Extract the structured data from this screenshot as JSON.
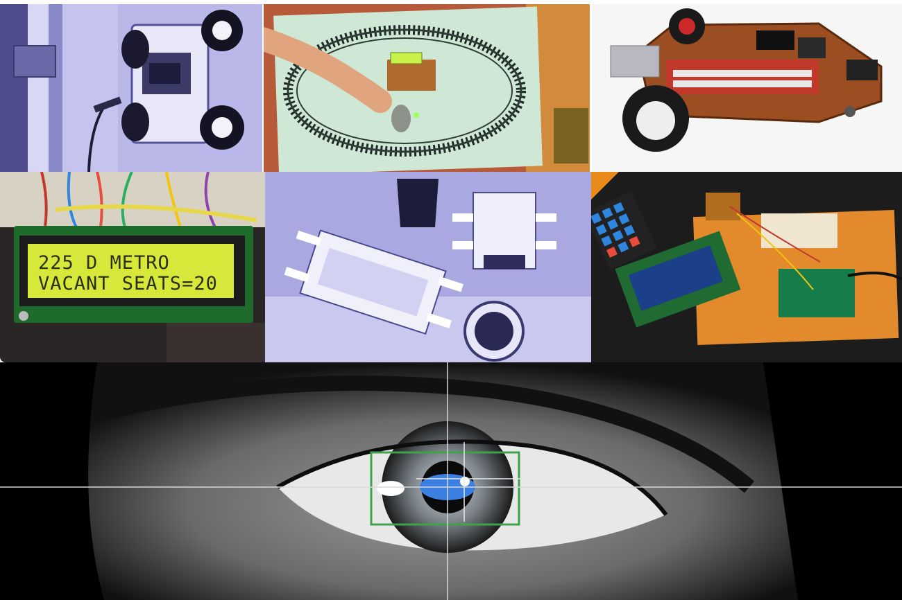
{
  "lcd": {
    "line1": "225 D  METRO",
    "line2": "VACANT SEATS=20"
  }
}
